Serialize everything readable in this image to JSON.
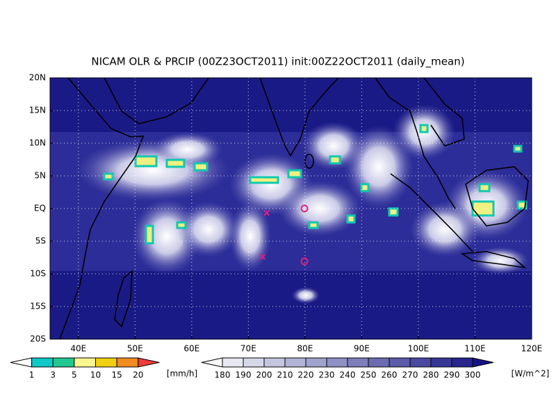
{
  "map": {
    "title": "NICAM OLR & PRCIP (00Z23OCT2011) init:00Z22OCT2011 (daily_mean)",
    "lat_labels": [
      "20N",
      "15N",
      "10N",
      "5N",
      "EQ",
      "5S",
      "10S",
      "15S",
      "20S"
    ],
    "lon_labels": [
      "40E",
      "50E",
      "60E",
      "70E",
      "80E",
      "90E",
      "100E",
      "110E",
      "120E"
    ],
    "precip_legend": {
      "labels": [
        "1",
        "3",
        "5",
        "10",
        "15",
        "20"
      ],
      "unit": "[mm/h]"
    },
    "olr_legend": {
      "labels": [
        "180",
        "190",
        "200",
        "210",
        "220",
        "230",
        "240",
        "250",
        "260",
        "270",
        "280",
        "290",
        "300"
      ],
      "unit": "[W/m^2]"
    }
  }
}
